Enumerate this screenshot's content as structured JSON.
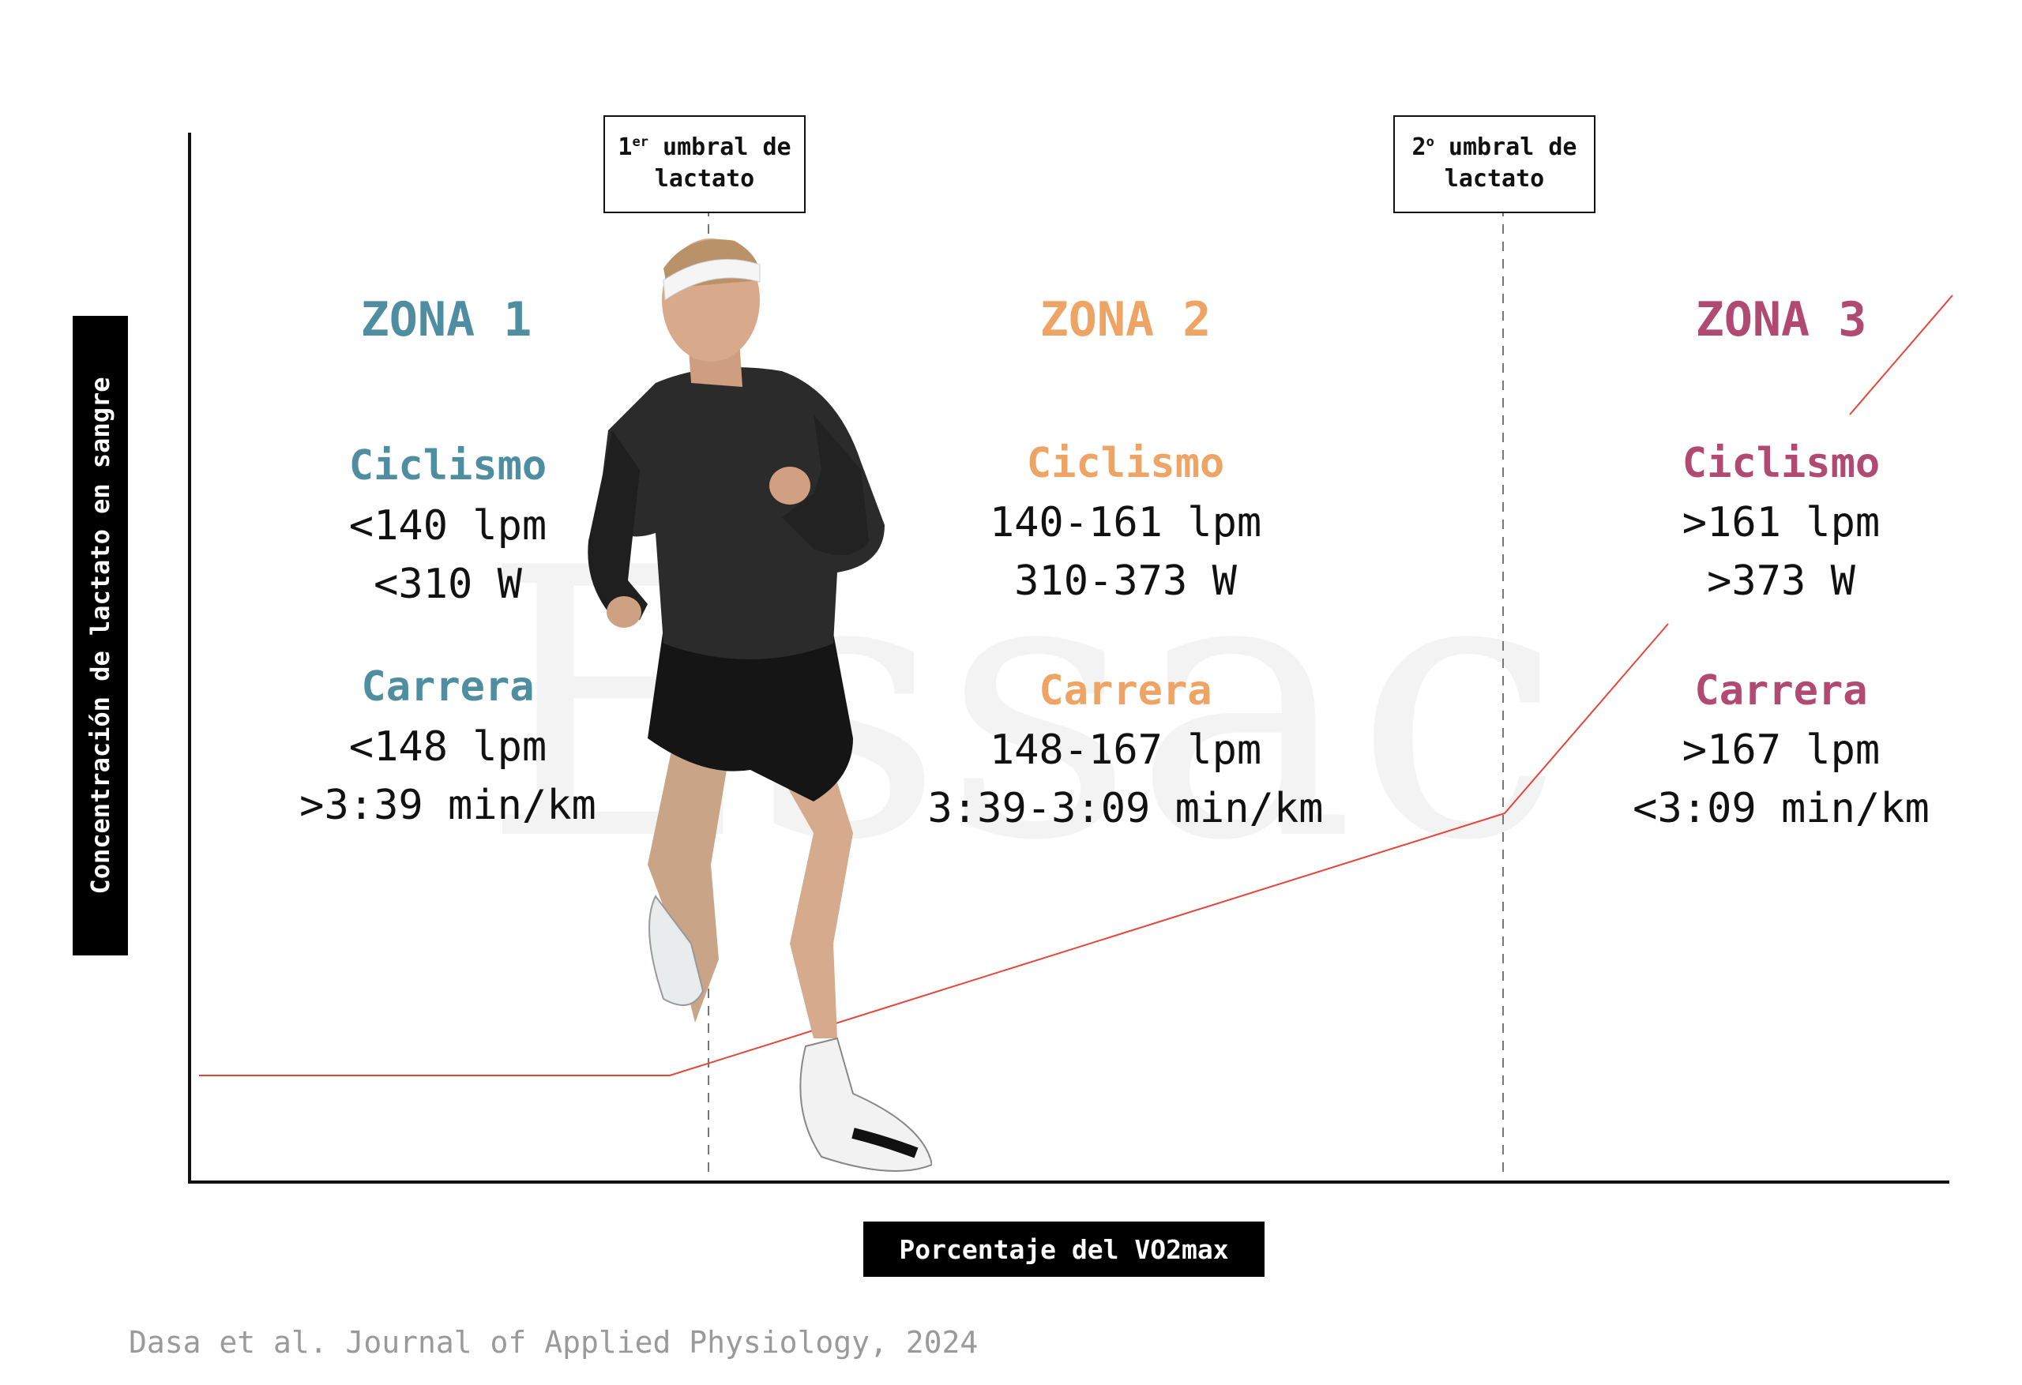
{
  "thresholds": [
    {
      "sup_prefix": "1",
      "sup": "er",
      "line1_rest": " umbral de",
      "line2": "lactato"
    },
    {
      "sup_prefix": "2",
      "sup": "o",
      "line1_rest": " umbral de",
      "line2": "lactato"
    }
  ],
  "zones": [
    {
      "title": "ZONA 1",
      "color": "#4e8ea0",
      "cycling_label": "Ciclismo",
      "cycling_hr": "<140 lpm",
      "cycling_power": "<310 W",
      "running_label": "Carrera",
      "running_hr": "<148 lpm",
      "running_pace": ">3:39 min/km"
    },
    {
      "title": "ZONA 2",
      "color": "#eda465",
      "cycling_label": "Ciclismo",
      "cycling_hr": "140-161 lpm",
      "cycling_power": "310-373 W",
      "running_label": "Carrera",
      "running_hr": "148-167 lpm",
      "running_pace": "3:39-3:09 min/km"
    },
    {
      "title": "ZONA 3",
      "color": "#b04a73",
      "cycling_label": "Ciclismo",
      "cycling_hr": ">161 lpm",
      "cycling_power": ">373 W",
      "running_label": "Carrera",
      "running_hr": ">167 lpm",
      "running_pace": "<3:09 min/km"
    }
  ],
  "axes": {
    "y_label": "Concentración de lactato en sangre",
    "x_label": "Porcentaje del VO2max"
  },
  "citation": "Dasa et al. Journal of Applied Physiology, 2024",
  "watermark": "Essac",
  "colors": {
    "curve": "#e8443a",
    "axis": "#111111",
    "threshold_line": "#777777"
  },
  "photo": {
    "subject": "runner-photo"
  }
}
